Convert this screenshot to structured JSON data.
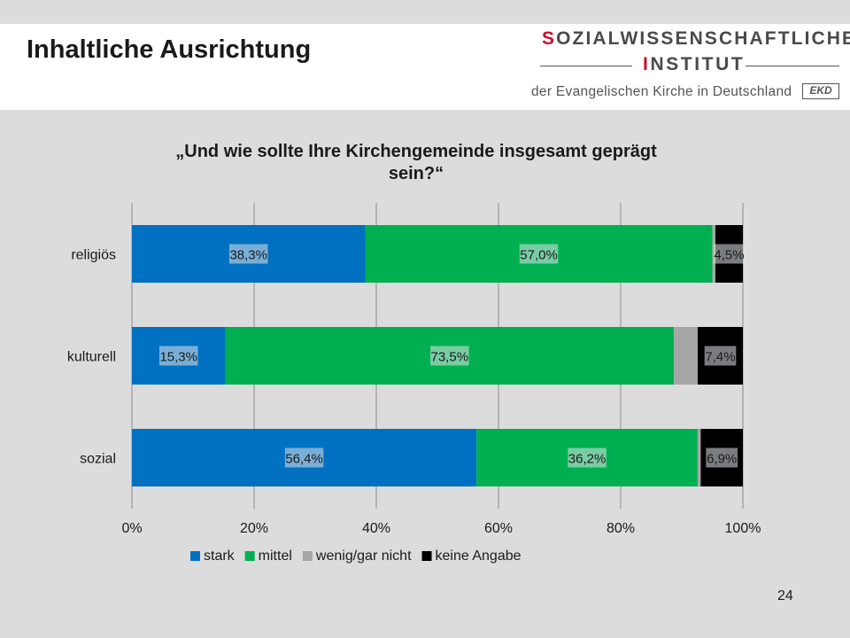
{
  "slide": {
    "title": "Inhaltliche Ausrichtung",
    "page_number": "24"
  },
  "logo": {
    "line1_first": "S",
    "line1_rest": "OZIALWISSENSCHAFTLICHES",
    "line2_first": "I",
    "line2_rest": "NSTITUT",
    "line3": "der Evangelischen Kirche in Deutschland",
    "badge": "EKD"
  },
  "chart_data": {
    "type": "bar",
    "orientation": "horizontal",
    "stacked": "percent",
    "title": "„Und wie sollte Ihre Kirchengemeinde insgesamt geprägt sein?“",
    "title_lines": [
      "„Und wie sollte Ihre Kirchengemeinde insgesamt geprägt",
      "sein?“"
    ],
    "categories": [
      "religiös",
      "kulturell",
      "sozial"
    ],
    "series": [
      {
        "name": "stark",
        "color": "#0070c0",
        "values": [
          38.3,
          15.3,
          56.4
        ],
        "labels": [
          "38,3%",
          "15,3%",
          "56,4%"
        ]
      },
      {
        "name": "mittel",
        "color": "#00b050",
        "values": [
          57.0,
          73.5,
          36.2
        ],
        "labels": [
          "57,0%",
          "73,5%",
          "36,2%"
        ]
      },
      {
        "name": "wenig/gar nicht",
        "color": "#a6a6a6",
        "values": [
          0.5,
          3.9,
          0.5
        ],
        "labels": [
          "",
          "",
          ""
        ]
      },
      {
        "name": "keine Angabe",
        "color": "#000000",
        "values": [
          4.5,
          7.4,
          6.9
        ],
        "labels": [
          "4,5%",
          "7,4%",
          "6,9%"
        ]
      }
    ],
    "xlim": [
      0,
      100
    ],
    "xticks": [
      "0%",
      "20%",
      "40%",
      "60%",
      "80%",
      "100%"
    ],
    "grid": true,
    "legend": "bottom"
  }
}
